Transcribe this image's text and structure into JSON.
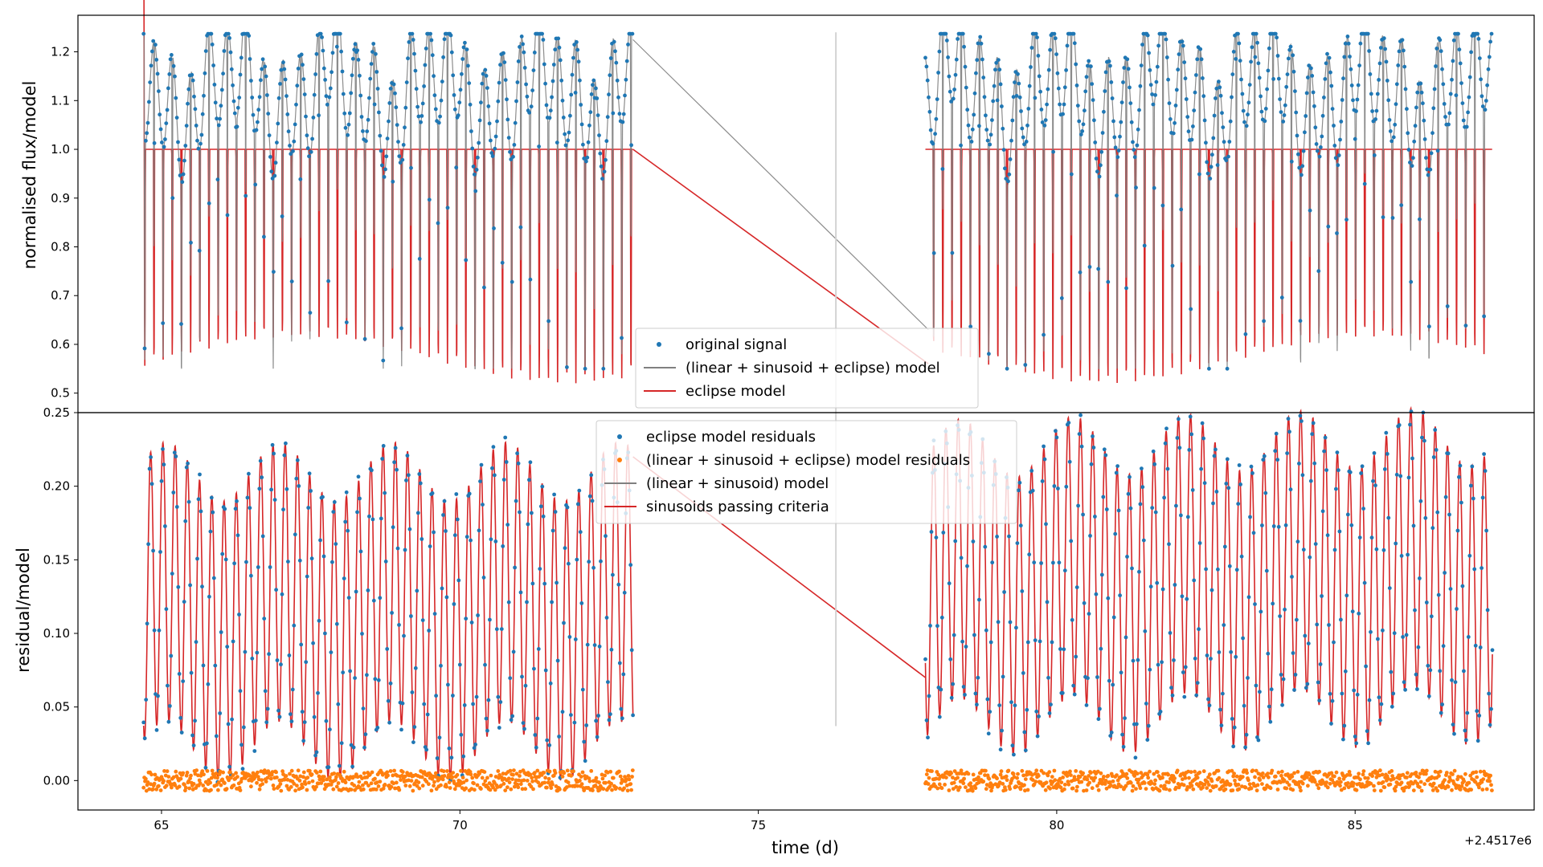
{
  "figure": {
    "offset_label": "+2.4517e6"
  },
  "chart_data": [
    {
      "type": "scatter",
      "panel": "top",
      "xlabel": "",
      "ylabel": "normalised flux/model",
      "xlim": [
        63.6,
        88.0
      ],
      "ylim": [
        0.46,
        1.275
      ],
      "x_ticks": [
        65,
        70,
        75,
        80,
        85
      ],
      "y_ticks": [
        0.5,
        0.6,
        0.7,
        0.8,
        0.9,
        1.0,
        1.1,
        1.2
      ],
      "y_tick_labels": [
        "0.5",
        "0.6",
        "0.7",
        "0.8",
        "0.9",
        "1.0",
        "1.1",
        "1.2"
      ],
      "segments": [
        [
          64.7,
          72.9
        ],
        [
          77.8,
          87.3
        ]
      ],
      "eclipse_period_days": 0.1537,
      "gap_line_x": 76.3,
      "legend": {
        "placement": "lower center"
      },
      "series": [
        {
          "name": "original signal",
          "kind": "scatter",
          "color": "#1f77b4",
          "max": 1.235,
          "min": 0.55,
          "eclipse_depth_min": 0.49
        },
        {
          "name": "(linear + sinusoid + eclipse) model",
          "kind": "line",
          "color": "#808080",
          "max": 1.23,
          "min": 0.55
        },
        {
          "name": "eclipse model",
          "kind": "line",
          "color": "#d62728",
          "baseline": 1.0,
          "min": 0.49
        }
      ]
    },
    {
      "type": "scatter",
      "panel": "bottom",
      "xlabel": "time (d)",
      "ylabel": "residual/model",
      "xlim": [
        63.6,
        88.0
      ],
      "ylim": [
        -0.02,
        0.25
      ],
      "x_ticks": [
        65,
        70,
        75,
        80,
        85
      ],
      "x_tick_labels": [
        "65",
        "70",
        "75",
        "80",
        "85"
      ],
      "y_ticks": [
        0.0,
        0.05,
        0.1,
        0.15,
        0.2,
        0.25
      ],
      "y_tick_labels": [
        "0.00",
        "0.05",
        "0.10",
        "0.15",
        "0.20",
        "0.25"
      ],
      "segments": [
        [
          64.7,
          72.9
        ],
        [
          77.8,
          87.3
        ]
      ],
      "gap_line_x": 76.3,
      "legend": {
        "placement": "upper center"
      },
      "series": [
        {
          "name": "eclipse model residuals",
          "kind": "scatter",
          "color": "#1f77b4",
          "range_segment1": [
            0.02,
            0.225
          ],
          "range_segment2": [
            0.03,
            0.235
          ]
        },
        {
          "name": "(linear + sinusoid + eclipse) model residuals",
          "kind": "scatter",
          "color": "#ff7f0e",
          "center": 0.0,
          "spread": 0.007
        },
        {
          "name": "(linear + sinusoid) model",
          "kind": "line",
          "color": "#808080"
        },
        {
          "name": "sinusoids passing criteria",
          "kind": "line",
          "color": "#d62728"
        }
      ]
    }
  ]
}
